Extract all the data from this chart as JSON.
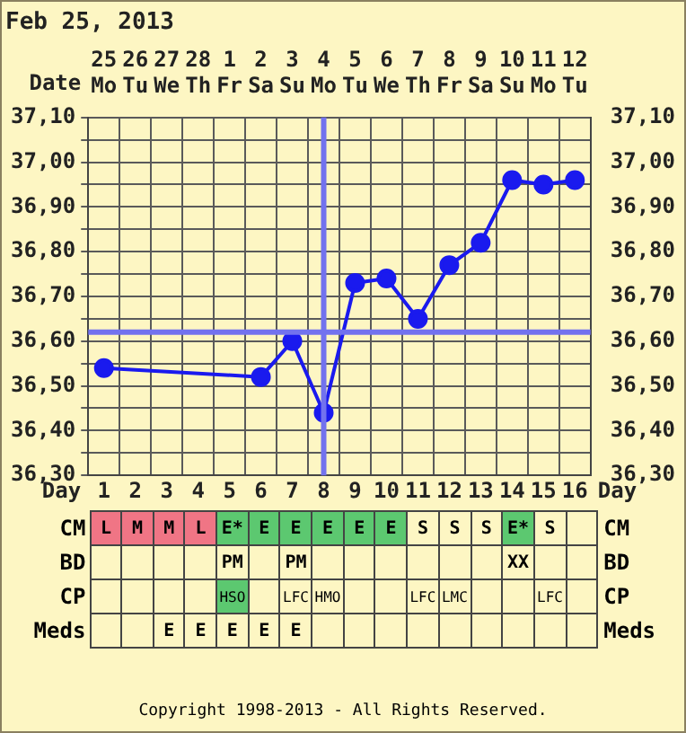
{
  "chart_data": [
    {
      "type": "line",
      "title": "Feb 25, 2013",
      "xlabel": "Day",
      "x2label": "Date",
      "x": [
        1,
        2,
        3,
        4,
        5,
        6,
        7,
        8,
        9,
        10,
        11,
        12,
        13,
        14,
        15,
        16
      ],
      "series": [
        {
          "color": "#1a1aee",
          "values": [
            36.54,
            null,
            null,
            null,
            null,
            36.52,
            36.6,
            36.44,
            36.73,
            36.74,
            36.65,
            36.77,
            36.82,
            36.96,
            36.95,
            36.96
          ]
        }
      ],
      "xlim": [
        0.5,
        16.5
      ],
      "xticks": [
        {
          "value": 0.5,
          "label": null
        },
        1,
        {
          "value": 1.5,
          "label": null
        },
        2,
        {
          "value": 2.5,
          "label": null
        },
        3,
        {
          "value": 3.5,
          "label": null
        },
        4,
        {
          "value": 4.5,
          "label": null
        },
        5,
        {
          "value": 5.5,
          "label": null
        },
        6,
        {
          "value": 6.5,
          "label": null
        },
        7,
        {
          "value": 7.5,
          "label": null
        },
        8,
        {
          "value": 8.5,
          "label": null
        },
        9,
        {
          "value": 9.5,
          "label": null
        },
        10,
        {
          "value": 10.5,
          "label": null
        },
        11,
        {
          "value": 11.5,
          "label": null
        },
        12,
        {
          "value": 12.5,
          "label": null
        },
        13,
        {
          "value": 13.5,
          "label": null
        },
        14,
        {
          "value": 14.5,
          "label": null
        },
        15,
        {
          "value": 15.5,
          "label": null
        },
        16,
        {
          "value": 16.5,
          "label": null
        }
      ],
      "x2lim": [
        "2013-02-24T12:00",
        "2013-03-12T12:00"
      ],
      "x2ticks": [
        {
          "value": "2013-02-25",
          "label": "25 Mo"
        },
        {
          "value": "2013-02-26",
          "label": "26 Tu"
        },
        {
          "value": "2013-02-27",
          "label": "27 We"
        },
        {
          "value": "2013-02-28",
          "label": "28 Th"
        },
        {
          "value": "2013-03-01",
          "label": "1 Fr"
        },
        {
          "value": "2013-03-02",
          "label": "2 Sa"
        },
        {
          "value": "2013-03-03",
          "label": "3 Su"
        },
        {
          "value": "2013-03-04",
          "label": "4 Mo"
        },
        {
          "value": "2013-03-05",
          "label": "5 Tu"
        },
        {
          "value": "2013-03-06",
          "label": "6 We"
        },
        {
          "value": "2013-03-07",
          "label": "7 Th"
        },
        {
          "value": "2013-03-08",
          "label": "8 Fr"
        },
        {
          "value": "2013-03-09",
          "label": "9 Sa"
        },
        {
          "value": "2013-03-10",
          "label": "10 Su"
        },
        {
          "value": "2013-03-11",
          "label": "11 Mo"
        },
        {
          "value": "2013-03-12",
          "label": "12 Tu"
        }
      ],
      "ylim": [
        36.3,
        37.1
      ],
      "yticks": [
        {
          "value": 36.3,
          "label": "36,30"
        },
        {
          "value": 36.35,
          "label": null
        },
        {
          "value": 36.4,
          "label": "36,40"
        },
        {
          "value": 36.45,
          "label": null
        },
        {
          "value": 36.5,
          "label": "36,50"
        },
        {
          "value": 36.55,
          "label": null
        },
        {
          "value": 36.6,
          "label": "36,60"
        },
        {
          "value": 36.65,
          "label": null
        },
        {
          "value": 36.7,
          "label": "36,70"
        },
        {
          "value": 36.75,
          "label": null
        },
        {
          "value": 36.8,
          "label": "36,80"
        },
        {
          "value": 36.85,
          "label": null
        },
        {
          "value": 36.9,
          "label": "36,90"
        },
        {
          "value": 36.95,
          "label": null
        },
        {
          "value": 37.0,
          "label": "37,00"
        },
        {
          "value": 37.05,
          "label": null
        },
        {
          "value": 37.1,
          "label": "37,10"
        }
      ],
      "y2lim": [
        36.3,
        37.1
      ],
      "y2ticks": [
        {
          "value": 36.3,
          "label": "36,30"
        },
        {
          "value": 36.35,
          "label": null
        },
        {
          "value": 36.4,
          "label": "36,40"
        },
        {
          "value": 36.45,
          "label": null
        },
        {
          "value": 36.5,
          "label": "36,50"
        },
        {
          "value": 36.55,
          "label": null
        },
        {
          "value": 36.6,
          "label": "36,60"
        },
        {
          "value": 36.65,
          "label": null
        },
        {
          "value": 36.7,
          "label": "36,70"
        },
        {
          "value": 36.75,
          "label": null
        },
        {
          "value": 36.8,
          "label": "36,80"
        },
        {
          "value": 36.85,
          "label": null
        },
        {
          "value": 36.9,
          "label": "36,90"
        },
        {
          "value": 36.95,
          "label": null
        },
        {
          "value": 37.0,
          "label": "37,00"
        },
        {
          "value": 37.05,
          "label": null
        },
        {
          "value": 37.1,
          "label": "37,10"
        }
      ],
      "ref_lines": [
        {
          "axis": "y",
          "value": 36.62,
          "color": "#7272ee"
        },
        {
          "axis": "x",
          "value": 8,
          "color": "#7272ee"
        }
      ],
      "grid": true,
      "marker": "circle",
      "legend": false
    },
    {
      "type": "other",
      "y_categories": [
        "CM",
        "BD",
        "CP",
        "Meds"
      ],
      "y2_categories": [
        "CM",
        "BD",
        "CP",
        "Meds"
      ],
      "cell_labels": [
        [
          "L",
          "M",
          "M",
          "L",
          "E*",
          "E",
          "E",
          "E",
          "E",
          "E",
          "S",
          "S",
          "S",
          "E*",
          "S",
          null
        ],
        [
          null,
          null,
          null,
          null,
          "PM",
          null,
          "PM",
          null,
          null,
          null,
          null,
          null,
          null,
          "XX",
          null,
          null
        ],
        [
          null,
          null,
          null,
          null,
          "HSO",
          null,
          "LFC",
          "HMO",
          null,
          null,
          "LFC",
          "LMC",
          null,
          null,
          "LFC",
          null
        ],
        [
          null,
          null,
          "E",
          "E",
          "E",
          "E",
          "E",
          null,
          null,
          null,
          null,
          null,
          null,
          null,
          null,
          null
        ]
      ],
      "colors": [
        [
          "#f07585",
          "#f07585",
          "#f07585",
          "#f07585",
          "#5cc870",
          "#5cc870",
          "#5cc870",
          "#5cc870",
          "#5cc870",
          "#5cc870",
          null,
          null,
          null,
          "#5cc870",
          null,
          null
        ],
        [
          null,
          null,
          null,
          null,
          null,
          null,
          null,
          null,
          null,
          null,
          null,
          null,
          null,
          null,
          null,
          null
        ],
        [
          null,
          null,
          null,
          null,
          "#5cc870",
          null,
          null,
          null,
          null,
          null,
          null,
          null,
          null,
          null,
          null,
          null
        ],
        [
          null,
          null,
          null,
          null,
          null,
          null,
          null,
          null,
          null,
          null,
          null,
          null,
          null,
          null,
          null,
          null
        ]
      ],
      "annotations": [
        "Copyright 1998-2013 - All Rights Reserved."
      ]
    }
  ]
}
